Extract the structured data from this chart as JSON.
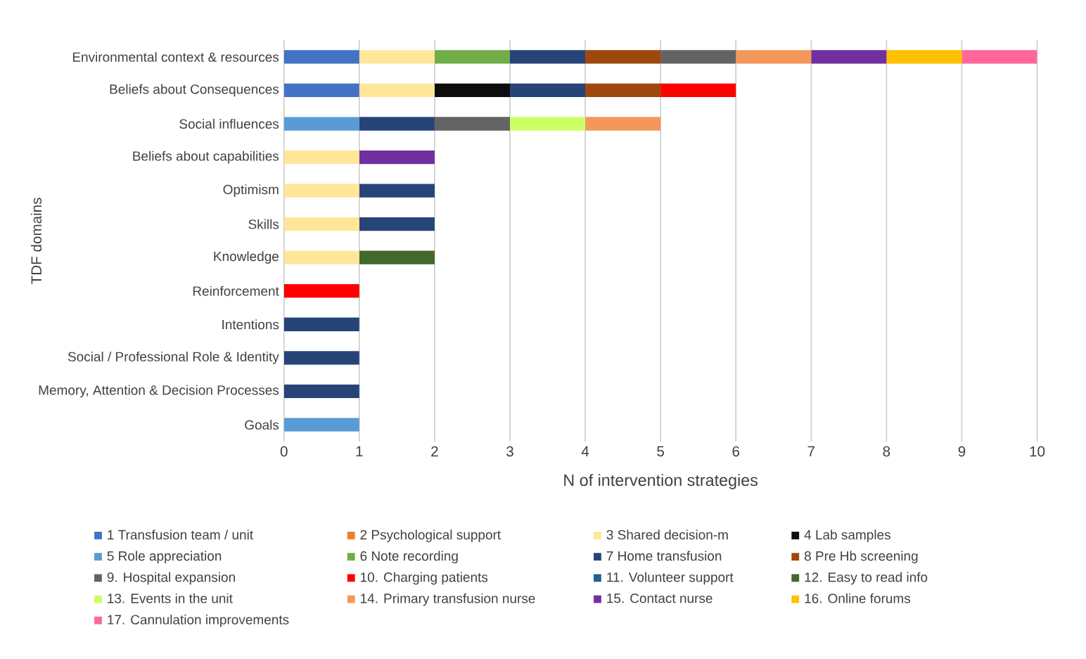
{
  "chart_data": {
    "type": "bar",
    "orientation": "horizontal",
    "stacked": true,
    "grid": "x",
    "legend": "bottom",
    "xlabel": "N of intervention strategies",
    "ylabel": "TDF domains",
    "categories": [
      "Environmental context & resources",
      "Beliefs about Consequences",
      "Social influences",
      "Beliefs about capabilities",
      "Optimism",
      "Skills",
      "Knowledge",
      "Reinforcement",
      "Intentions",
      "Social / Professional Role & Identity",
      "Memory, Attention & Decision Processes",
      "Goals"
    ],
    "xlim": [
      0,
      10
    ],
    "xticks": [
      0,
      1,
      2,
      3,
      4,
      5,
      6,
      7,
      8,
      9,
      10
    ],
    "series": [
      {
        "name": "1 Transfusion team / unit",
        "color": "#4472c4",
        "values": [
          1,
          1,
          0,
          0,
          0,
          0,
          0,
          0,
          0,
          0,
          0,
          0
        ]
      },
      {
        "name": "2 Psychological support",
        "color": "#ed7d31",
        "values": [
          0,
          0,
          0,
          0,
          0,
          0,
          0,
          0,
          0,
          0,
          0,
          0
        ]
      },
      {
        "name": "3 Shared decision-m",
        "color": "#ffe699",
        "values": [
          1,
          1,
          0,
          1,
          1,
          1,
          1,
          0,
          0,
          0,
          0,
          0
        ]
      },
      {
        "name": "4 Lab samples",
        "color": "#0d0d0d",
        "values": [
          0,
          1,
          0,
          0,
          0,
          0,
          0,
          0,
          0,
          0,
          0,
          0
        ]
      },
      {
        "name": "5 Role appreciation",
        "color": "#5b9bd5",
        "values": [
          0,
          0,
          1,
          0,
          0,
          0,
          0,
          0,
          0,
          0,
          0,
          1
        ]
      },
      {
        "name": "6 Note recording",
        "color": "#70ad47",
        "values": [
          1,
          0,
          0,
          0,
          0,
          0,
          0,
          0,
          0,
          0,
          0,
          0
        ]
      },
      {
        "name": "7 Home transfusion",
        "color": "#264478",
        "values": [
          1,
          1,
          1,
          0,
          1,
          1,
          0,
          0,
          1,
          1,
          1,
          0
        ]
      },
      {
        "name": "8 Pre Hb screening",
        "color": "#9e480e",
        "values": [
          1,
          1,
          0,
          0,
          0,
          0,
          0,
          0,
          0,
          0,
          0,
          0
        ]
      },
      {
        "name": "9. Hospital expansion",
        "color": "#636363",
        "values": [
          1,
          0,
          1,
          0,
          0,
          0,
          0,
          0,
          0,
          0,
          0,
          0
        ]
      },
      {
        "name": "10. Charging patients",
        "color": "#ff0000",
        "values": [
          0,
          1,
          0,
          0,
          0,
          0,
          0,
          1,
          0,
          0,
          0,
          0
        ]
      },
      {
        "name": "11. Volunteer support",
        "color": "#255e91",
        "values": [
          0,
          0,
          0,
          0,
          0,
          0,
          0,
          0,
          0,
          0,
          0,
          0
        ]
      },
      {
        "name": "12. Easy to read info",
        "color": "#43682b",
        "values": [
          0,
          0,
          0,
          0,
          0,
          0,
          1,
          0,
          0,
          0,
          0,
          0
        ]
      },
      {
        "name": "13. Events in the unit",
        "color": "#ccff66",
        "values": [
          0,
          0,
          1,
          0,
          0,
          0,
          0,
          0,
          0,
          0,
          0,
          0
        ]
      },
      {
        "name": "14. Primary transfusion nurse",
        "color": "#f4975a",
        "values": [
          1,
          0,
          1,
          0,
          0,
          0,
          0,
          0,
          0,
          0,
          0,
          0
        ]
      },
      {
        "name": "15. Contact nurse",
        "color": "#7030a0",
        "values": [
          1,
          0,
          0,
          1,
          0,
          0,
          0,
          0,
          0,
          0,
          0,
          0
        ]
      },
      {
        "name": "16. Online forums",
        "color": "#ffc000",
        "values": [
          1,
          0,
          0,
          0,
          0,
          0,
          0,
          0,
          0,
          0,
          0,
          0
        ]
      },
      {
        "name": "17. Cannulation improvements",
        "color": "#ff6699",
        "values": [
          1,
          0,
          0,
          0,
          0,
          0,
          0,
          0,
          0,
          0,
          0,
          0
        ]
      }
    ]
  }
}
